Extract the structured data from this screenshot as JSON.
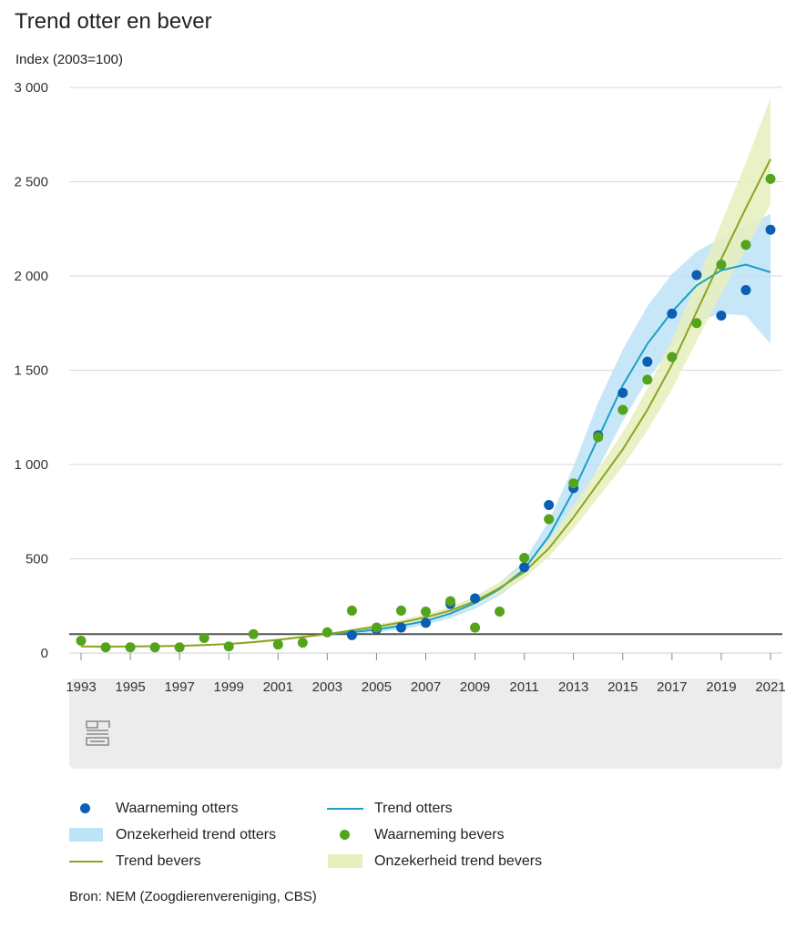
{
  "chart_data": {
    "type": "line",
    "title": "Trend otter en bever",
    "ylabel": "Index (2003=100)",
    "xlabel": "",
    "ylim": [
      0,
      3000
    ],
    "yticks": [
      0,
      500,
      1000,
      1500,
      2000,
      2500,
      3000
    ],
    "ytick_labels": [
      "0",
      "500",
      "1 000",
      "1 500",
      "2 000",
      "2 500",
      "3 000"
    ],
    "xlim": [
      1993,
      2021
    ],
    "xtick_labels": [
      "1993",
      "1995",
      "1997",
      "1999",
      "2001",
      "2003",
      "2005",
      "2007",
      "2009",
      "2011",
      "2013",
      "2015",
      "2017",
      "2019",
      "2021"
    ],
    "reference_line": 100,
    "grid": true,
    "source": "Bron: NEM (Zoogdierenvereniging, CBS)",
    "legend": {
      "obs_otters": "Waarneming otters",
      "trend_otters": "Trend otters",
      "band_otters": "Onzekerheid trend otters",
      "obs_bevers": "Waarneming bevers",
      "trend_bevers": "Trend bevers",
      "band_bevers": "Onzekerheid trend bevers"
    },
    "colors": {
      "otters_obs": "#0a5fb4",
      "otters_trend": "#1aa0c8",
      "otters_band": "#bde3f7",
      "bevers_obs": "#53a31d",
      "bevers_trend": "#8aa51f",
      "bevers_band": "#e7efbd",
      "reference": "#555555",
      "grid": "#d9d9d9",
      "logo_panel": "#ececec"
    },
    "series": [
      {
        "key": "obs_otters",
        "type": "scatter",
        "points": [
          [
            2004,
            95
          ],
          [
            2005,
            125
          ],
          [
            2006,
            135
          ],
          [
            2007,
            160
          ],
          [
            2008,
            260
          ],
          [
            2009,
            290
          ],
          [
            2011,
            455
          ],
          [
            2012,
            785
          ],
          [
            2013,
            875
          ],
          [
            2014,
            1155
          ],
          [
            2015,
            1380
          ],
          [
            2016,
            1545
          ],
          [
            2017,
            1800
          ],
          [
            2018,
            2005
          ],
          [
            2019,
            1790
          ],
          [
            2020,
            1925
          ],
          [
            2021,
            2245
          ]
        ]
      },
      {
        "key": "trend_otters",
        "type": "line",
        "points": [
          [
            2003,
            100
          ],
          [
            2004,
            110
          ],
          [
            2005,
            125
          ],
          [
            2006,
            145
          ],
          [
            2007,
            170
          ],
          [
            2008,
            210
          ],
          [
            2009,
            265
          ],
          [
            2010,
            340
          ],
          [
            2011,
            445
          ],
          [
            2012,
            620
          ],
          [
            2013,
            860
          ],
          [
            2014,
            1140
          ],
          [
            2015,
            1420
          ],
          [
            2016,
            1640
          ],
          [
            2017,
            1810
          ],
          [
            2018,
            1950
          ],
          [
            2019,
            2030
          ],
          [
            2020,
            2060
          ],
          [
            2021,
            2020
          ]
        ]
      },
      {
        "key": "band_otters",
        "type": "area",
        "upper": [
          [
            2003,
            100
          ],
          [
            2004,
            125
          ],
          [
            2005,
            145
          ],
          [
            2006,
            170
          ],
          [
            2007,
            200
          ],
          [
            2008,
            240
          ],
          [
            2009,
            300
          ],
          [
            2010,
            375
          ],
          [
            2011,
            490
          ],
          [
            2012,
            700
          ],
          [
            2013,
            990
          ],
          [
            2014,
            1330
          ],
          [
            2015,
            1610
          ],
          [
            2016,
            1840
          ],
          [
            2017,
            2010
          ],
          [
            2018,
            2130
          ],
          [
            2019,
            2200
          ],
          [
            2020,
            2270
          ],
          [
            2021,
            2330
          ]
        ],
        "lower": [
          [
            2003,
            100
          ],
          [
            2004,
            95
          ],
          [
            2005,
            110
          ],
          [
            2006,
            125
          ],
          [
            2007,
            150
          ],
          [
            2008,
            185
          ],
          [
            2009,
            235
          ],
          [
            2010,
            305
          ],
          [
            2011,
            405
          ],
          [
            2012,
            550
          ],
          [
            2013,
            740
          ],
          [
            2014,
            980
          ],
          [
            2015,
            1230
          ],
          [
            2016,
            1450
          ],
          [
            2017,
            1620
          ],
          [
            2018,
            1760
          ],
          [
            2019,
            1800
          ],
          [
            2020,
            1790
          ],
          [
            2021,
            1640
          ]
        ]
      },
      {
        "key": "obs_bevers",
        "type": "scatter",
        "points": [
          [
            1993,
            65
          ],
          [
            1994,
            30
          ],
          [
            1995,
            30
          ],
          [
            1996,
            30
          ],
          [
            1997,
            30
          ],
          [
            1998,
            80
          ],
          [
            1999,
            35
          ],
          [
            2000,
            100
          ],
          [
            2001,
            45
          ],
          [
            2002,
            55
          ],
          [
            2003,
            110
          ],
          [
            2004,
            225
          ],
          [
            2005,
            135
          ],
          [
            2006,
            225
          ],
          [
            2007,
            220
          ],
          [
            2008,
            275
          ],
          [
            2009,
            135
          ],
          [
            2010,
            220
          ],
          [
            2011,
            505
          ],
          [
            2012,
            710
          ],
          [
            2013,
            900
          ],
          [
            2014,
            1145
          ],
          [
            2015,
            1290
          ],
          [
            2016,
            1450
          ],
          [
            2017,
            1570
          ],
          [
            2018,
            1750
          ],
          [
            2019,
            2060
          ],
          [
            2020,
            2165
          ],
          [
            2021,
            2515
          ]
        ]
      },
      {
        "key": "trend_bevers",
        "type": "line",
        "points": [
          [
            1993,
            35
          ],
          [
            1994,
            34
          ],
          [
            1995,
            35
          ],
          [
            1996,
            36
          ],
          [
            1997,
            38
          ],
          [
            1998,
            42
          ],
          [
            1999,
            48
          ],
          [
            2000,
            58
          ],
          [
            2001,
            70
          ],
          [
            2002,
            85
          ],
          [
            2003,
            100
          ],
          [
            2004,
            120
          ],
          [
            2005,
            140
          ],
          [
            2006,
            162
          ],
          [
            2007,
            190
          ],
          [
            2008,
            225
          ],
          [
            2009,
            275
          ],
          [
            2010,
            345
          ],
          [
            2011,
            430
          ],
          [
            2012,
            555
          ],
          [
            2013,
            720
          ],
          [
            2014,
            900
          ],
          [
            2015,
            1080
          ],
          [
            2016,
            1290
          ],
          [
            2017,
            1530
          ],
          [
            2018,
            1810
          ],
          [
            2019,
            2090
          ],
          [
            2020,
            2360
          ],
          [
            2021,
            2620
          ]
        ]
      },
      {
        "key": "band_bevers",
        "type": "area",
        "upper": [
          [
            1993,
            40
          ],
          [
            1994,
            39
          ],
          [
            1995,
            40
          ],
          [
            1996,
            41
          ],
          [
            1997,
            43
          ],
          [
            1998,
            47
          ],
          [
            1999,
            53
          ],
          [
            2000,
            64
          ],
          [
            2001,
            77
          ],
          [
            2002,
            92
          ],
          [
            2003,
            100
          ],
          [
            2004,
            130
          ],
          [
            2005,
            152
          ],
          [
            2006,
            177
          ],
          [
            2007,
            207
          ],
          [
            2008,
            245
          ],
          [
            2009,
            300
          ],
          [
            2010,
            375
          ],
          [
            2011,
            465
          ],
          [
            2012,
            600
          ],
          [
            2013,
            780
          ],
          [
            2014,
            975
          ],
          [
            2015,
            1170
          ],
          [
            2016,
            1400
          ],
          [
            2017,
            1660
          ],
          [
            2018,
            1970
          ],
          [
            2019,
            2280
          ],
          [
            2020,
            2600
          ],
          [
            2021,
            2945
          ]
        ],
        "lower": [
          [
            1993,
            30
          ],
          [
            1994,
            29
          ],
          [
            1995,
            30
          ],
          [
            1996,
            31
          ],
          [
            1997,
            33
          ],
          [
            1998,
            37
          ],
          [
            1999,
            43
          ],
          [
            2000,
            52
          ],
          [
            2001,
            63
          ],
          [
            2002,
            78
          ],
          [
            2003,
            100
          ],
          [
            2004,
            110
          ],
          [
            2005,
            128
          ],
          [
            2006,
            147
          ],
          [
            2007,
            173
          ],
          [
            2008,
            205
          ],
          [
            2009,
            250
          ],
          [
            2010,
            315
          ],
          [
            2011,
            395
          ],
          [
            2012,
            510
          ],
          [
            2013,
            660
          ],
          [
            2014,
            825
          ],
          [
            2015,
            990
          ],
          [
            2016,
            1180
          ],
          [
            2017,
            1400
          ],
          [
            2018,
            1655
          ],
          [
            2019,
            1905
          ],
          [
            2020,
            2145
          ],
          [
            2021,
            2380
          ]
        ]
      }
    ]
  }
}
